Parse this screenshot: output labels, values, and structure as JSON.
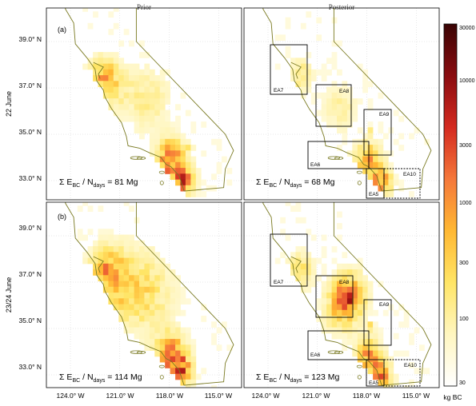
{
  "columns": [
    "Prior",
    "Posterior"
  ],
  "rows": [
    {
      "label": "22 June",
      "tag": "(a)"
    },
    {
      "label": "23/24 June",
      "tag": "(b)"
    }
  ],
  "ytick_labels": [
    "39.0° N",
    "37.0° N",
    "35.0° N",
    "33.0° N"
  ],
  "xtick_labels": [
    "124.0° W",
    "121.0° W",
    "118.0° W",
    "115.0° W",
    "124.0° W",
    "121.0° W",
    "118.0° W",
    "115.0° W"
  ],
  "sums": [
    {
      "panel": "22 June prior",
      "value": "81 Mg"
    },
    {
      "panel": "22 June posterior",
      "value": "68 Mg"
    },
    {
      "panel": "23/24 June prior",
      "value": "114 Mg"
    },
    {
      "panel": "23/24 June posterior",
      "value": "123 Mg"
    }
  ],
  "sum_symbol": "Σ",
  "sum_E": "E",
  "sum_E_sub": "BC",
  "sum_N": "N",
  "sum_N_sub": "days",
  "colorbar": {
    "ticks": [
      "30000",
      "10000",
      "3000",
      "1000",
      "300",
      "100",
      "30"
    ],
    "unit_label": "kg BC",
    "stops": [
      "#ffffff",
      "#fff6c0",
      "#ffe566",
      "#ffb833",
      "#f5783a",
      "#d42a20",
      "#8a0c10",
      "#3a0404"
    ]
  },
  "regions": [
    {
      "name": "EA7",
      "style": "solid"
    },
    {
      "name": "EA8",
      "style": "solid"
    },
    {
      "name": "EA9",
      "style": "solid"
    },
    {
      "name": "EA6",
      "style": "solid"
    },
    {
      "name": "EA5",
      "style": "solid"
    },
    {
      "name": "EA10",
      "style": "dashed"
    }
  ],
  "colors": {
    "coast": "#7a7a22",
    "grid": "#d0d0d0"
  }
}
